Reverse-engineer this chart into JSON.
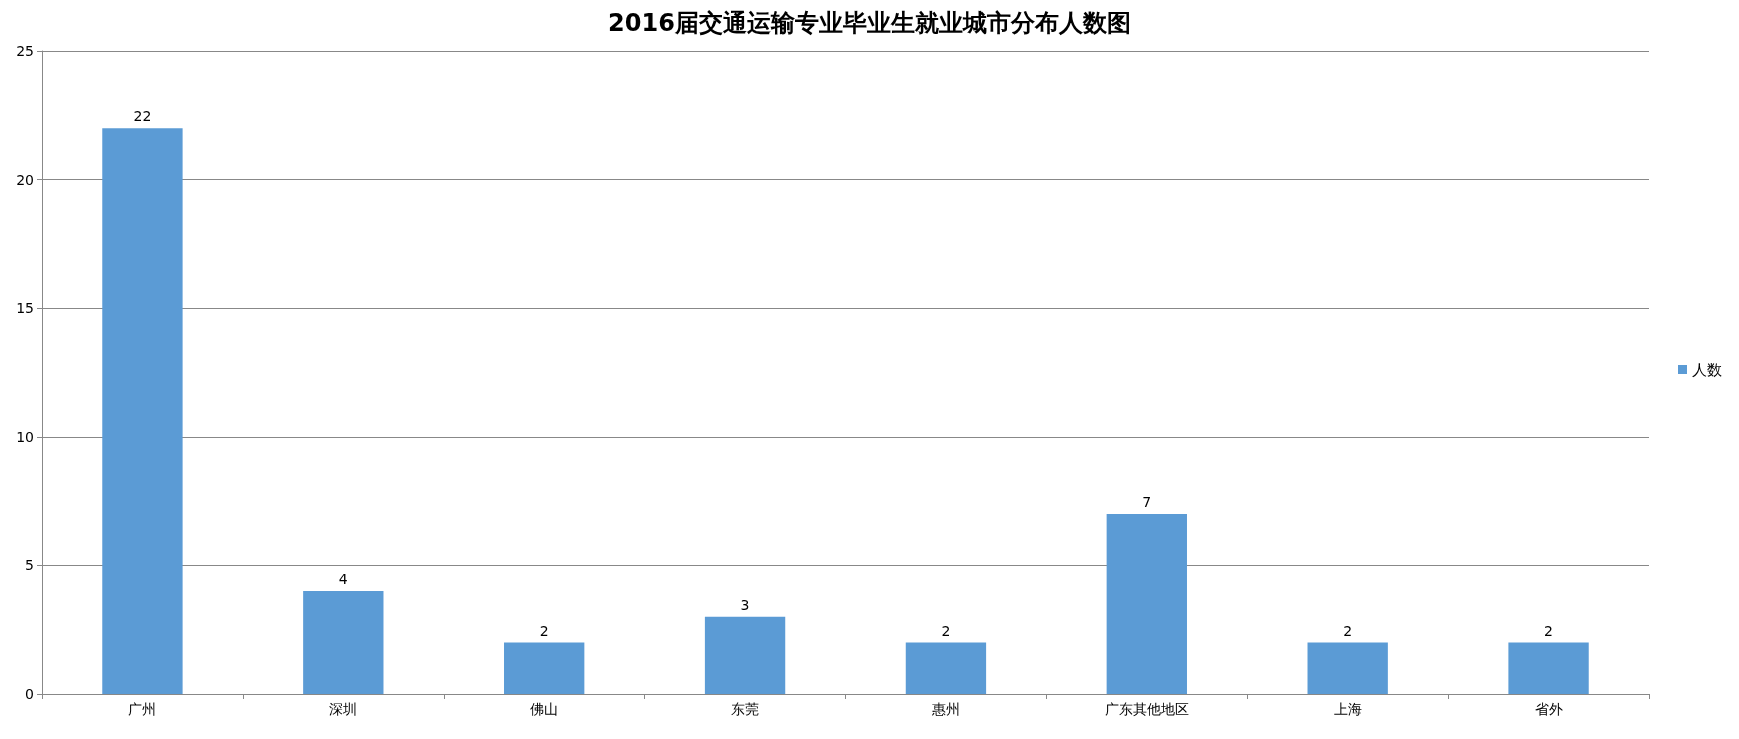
{
  "chart_data": {
    "type": "bar",
    "title": "2016届交通运输专业毕业生就业城市分布人数图",
    "categories": [
      "广州",
      "深圳",
      "佛山",
      "东莞",
      "惠州",
      "广东其他地区",
      "上海",
      "省外"
    ],
    "series": [
      {
        "name": "人数",
        "color": "#5b9bd5",
        "values": [
          22,
          4,
          2,
          3,
          2,
          7,
          2,
          2
        ]
      }
    ],
    "ylim": [
      0,
      25
    ],
    "yticks": [
      0,
      5,
      10,
      15,
      20,
      25
    ],
    "grid": "y",
    "legend": "right",
    "data_labels": true
  }
}
